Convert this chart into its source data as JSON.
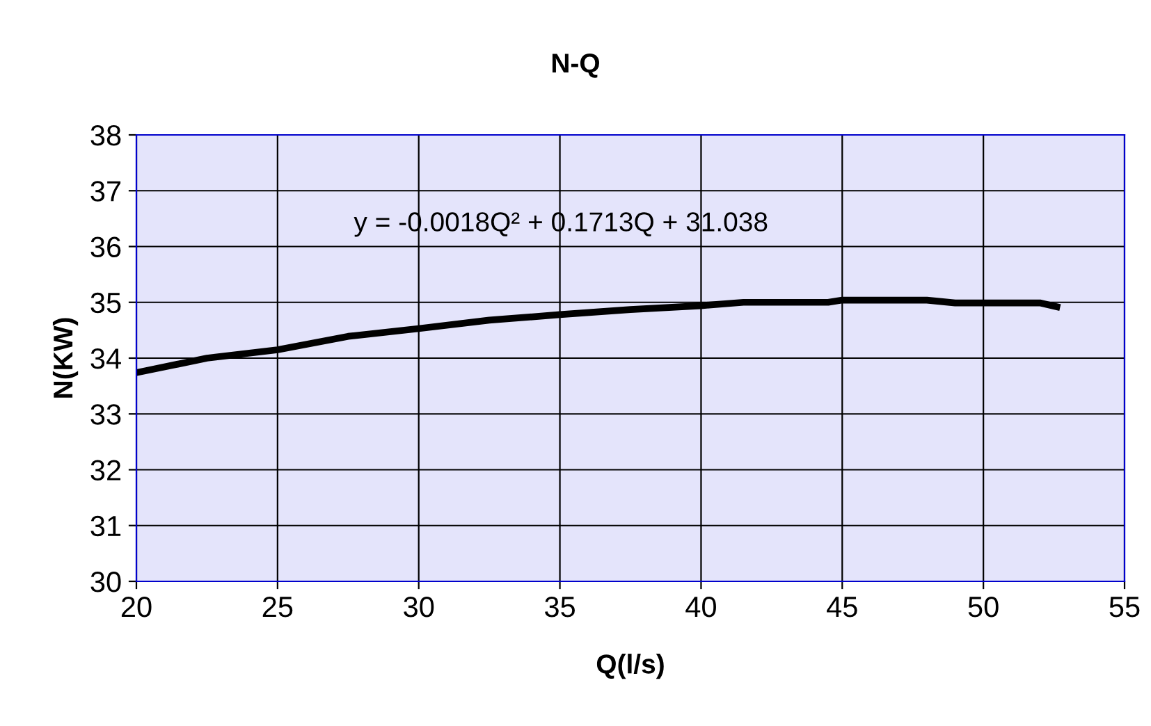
{
  "chart_data": {
    "type": "line",
    "title": "N-Q",
    "xlabel": "Q(l/s)",
    "ylabel": "N(KW)",
    "x": [
      20,
      22.5,
      25,
      27.5,
      30,
      32.5,
      35,
      37.5,
      40,
      41.5,
      44.5,
      45,
      48,
      49,
      52,
      52.6
    ],
    "series": [
      {
        "color": "#000000",
        "values": [
          33.74,
          34.0,
          34.15,
          34.39,
          34.53,
          34.68,
          34.78,
          34.87,
          34.94,
          35.0,
          35.0,
          35.04,
          35.04,
          34.99,
          34.99,
          34.92
        ]
      }
    ],
    "xlim": [
      20,
      55
    ],
    "xticks": [
      20,
      25,
      30,
      35,
      40,
      45,
      50,
      55
    ],
    "ylim": [
      30,
      38
    ],
    "yticks": [
      30,
      31,
      32,
      33,
      34,
      35,
      36,
      37,
      38
    ],
    "grid": true,
    "annotations": [
      "y = -0.0018Q² + 0.1713Q + 31.038"
    ]
  }
}
